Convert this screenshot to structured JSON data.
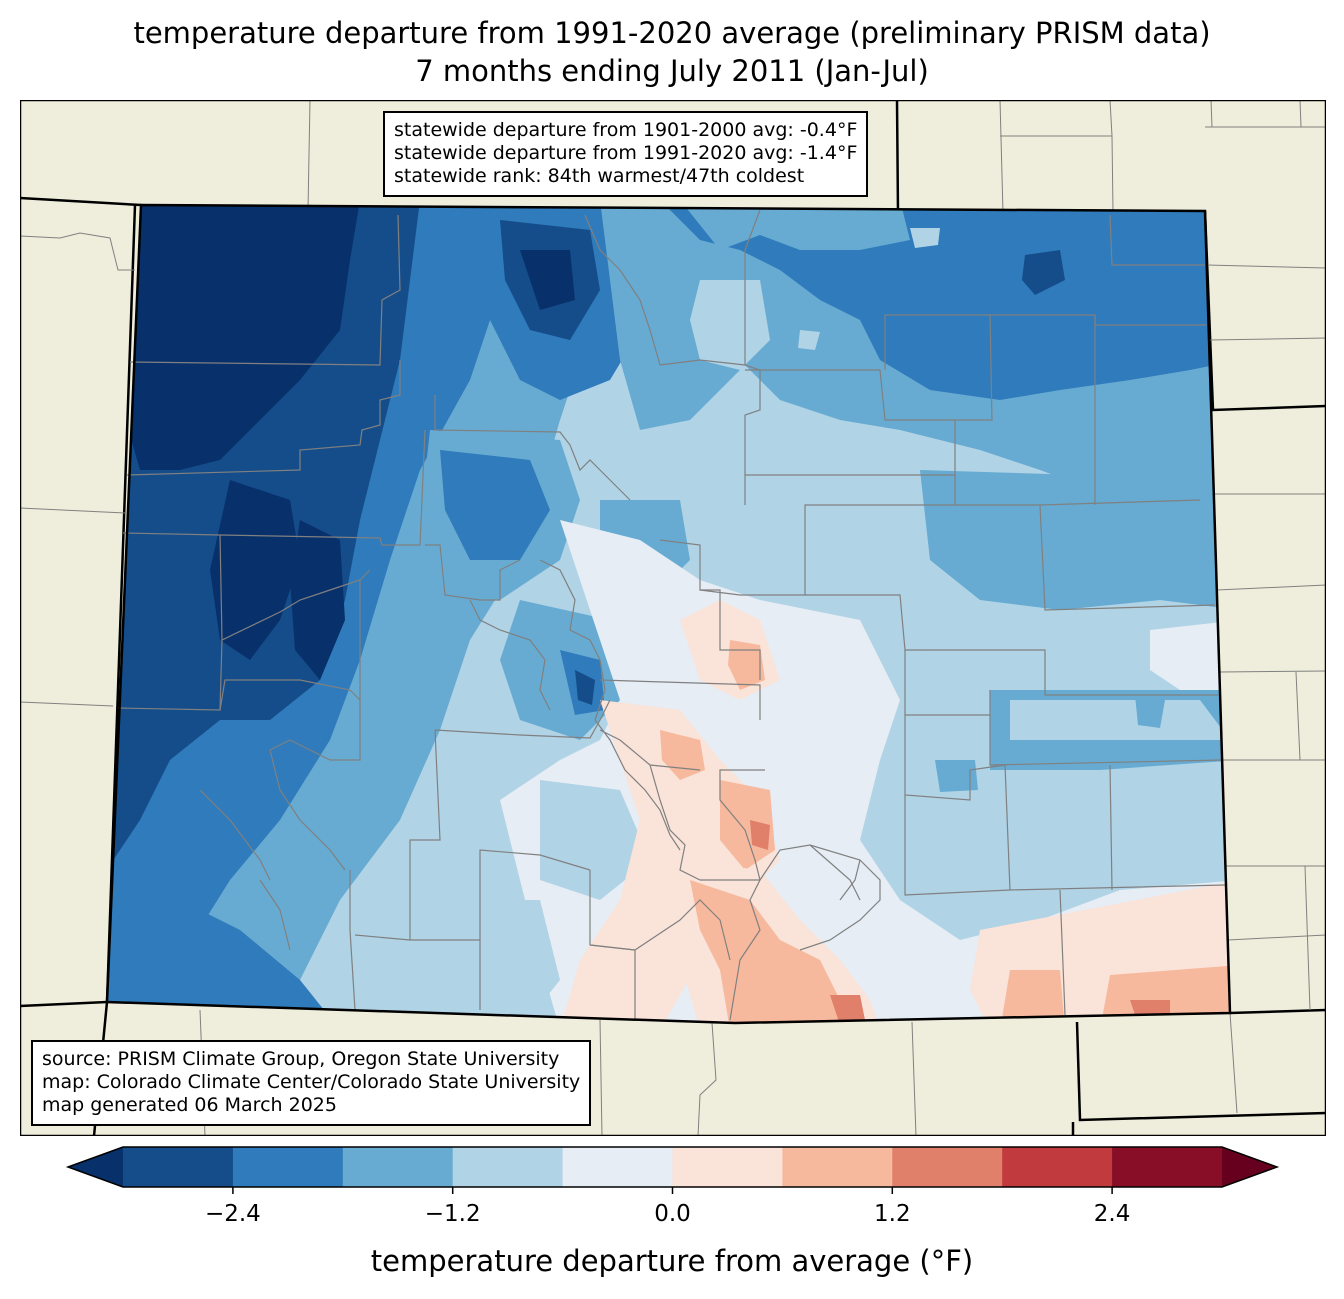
{
  "title": {
    "line1": "temperature departure from 1991-2020 average (preliminary PRISM data)",
    "line2": "7 months ending July 2011 (Jan-Jul)"
  },
  "stats": {
    "line1": "statewide departure from 1901-2000 avg: -0.4°F",
    "line2": "statewide departure from 1991-2020 avg: -1.4°F",
    "line3": "statewide rank: 84th warmest/47th coldest"
  },
  "credits": {
    "line1": "source: PRISM Climate Group, Oregon State University",
    "line2": "map: Colorado Climate Center/Colorado State University",
    "line3": "map generated 06 March 2025"
  },
  "colorbar": {
    "title": "temperature departure from average (°F)",
    "ticks": [
      "−2.4",
      "−1.2",
      "0.0",
      "1.2",
      "2.4"
    ],
    "tick_values": [
      -2.4,
      -1.2,
      0.0,
      1.2,
      2.4
    ],
    "bounds": [
      -3.0,
      -2.4,
      -1.8,
      -1.2,
      -0.6,
      0.0,
      0.6,
      1.2,
      1.8,
      2.4,
      3.0
    ],
    "colors": [
      "#08306b",
      "#144d8a",
      "#2f7bbb",
      "#67abd2",
      "#b0d3e6",
      "#e6edf4",
      "#fae3d8",
      "#f7b99e",
      "#e0806a",
      "#c13a3d",
      "#870e26",
      "#67001f"
    ]
  },
  "map": {
    "land_color": "#efeedc",
    "boundary_color": "#000000",
    "county_color": "#808080"
  }
}
